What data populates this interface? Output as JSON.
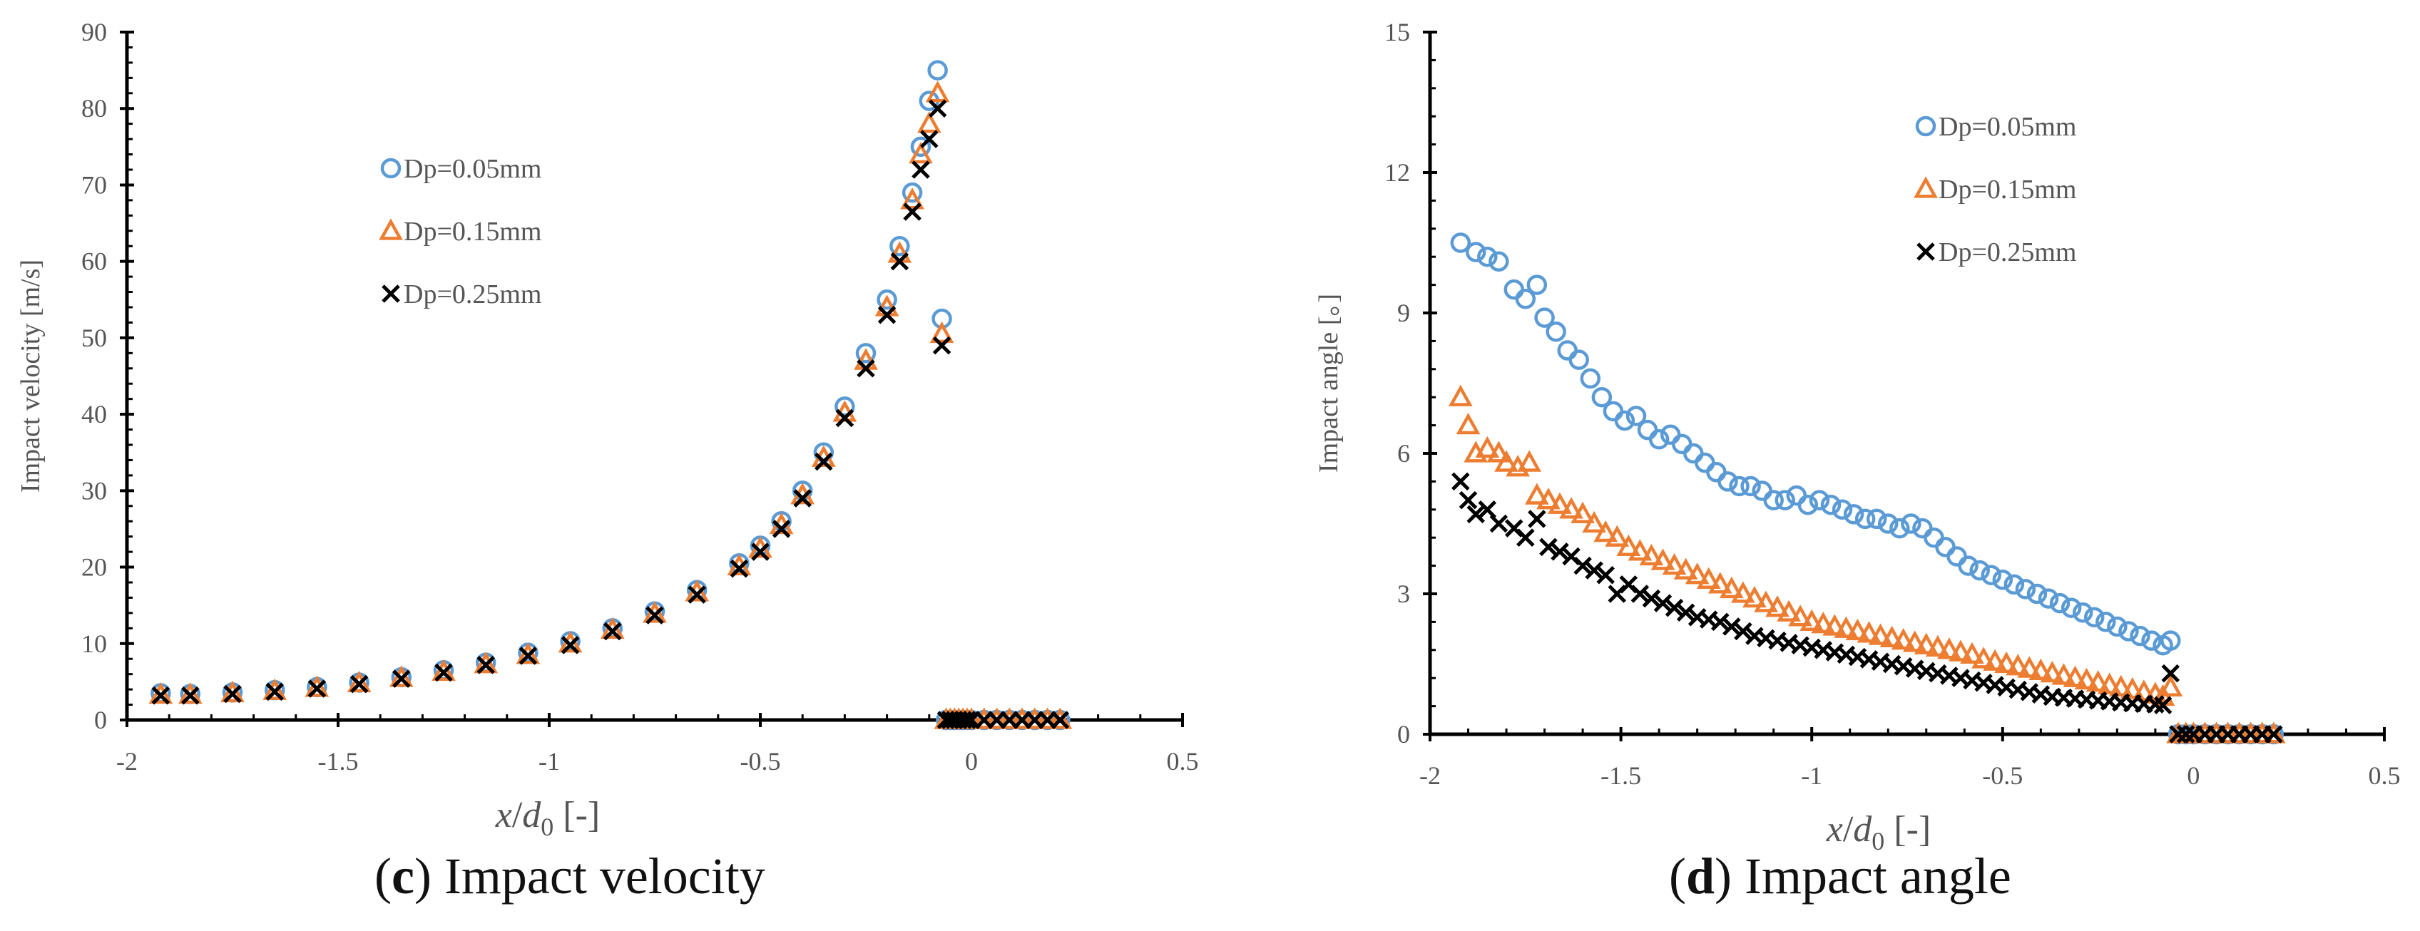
{
  "colors": {
    "series_005": "#5b9bd5",
    "series_015": "#ed7d31",
    "series_025": "#000000",
    "axis": "#000000",
    "text": "#555555"
  },
  "chart_data": [
    {
      "id": "c",
      "type": "scatter",
      "title": "Impact velocity",
      "caption_letter": "c",
      "caption_text": "Impact velocity",
      "ylabel": "Impact velocity [m/s]",
      "xlabel_var": "x",
      "xlabel_d": "d",
      "xlabel_sub": "0",
      "xlabel_unit": "[-]",
      "xlim": [
        -2,
        0.5
      ],
      "ylim": [
        0,
        90
      ],
      "xticks": [
        -2,
        -1.5,
        -1,
        -0.5,
        0,
        0.5
      ],
      "xtick_labels": [
        "-2",
        "-1.5",
        "-1",
        "-0.5",
        "0",
        "0.5"
      ],
      "yticks": [
        0,
        10,
        20,
        30,
        40,
        50,
        60,
        70,
        80,
        90
      ],
      "ytick_labels": [
        "0",
        "10",
        "20",
        "30",
        "40",
        "50",
        "60",
        "70",
        "80",
        "90"
      ],
      "legend_position": "upper-left-center",
      "series": [
        {
          "name": "Dp=0.05mm",
          "marker": "circle",
          "x": [
            -1.92,
            -1.85,
            -1.75,
            -1.65,
            -1.55,
            -1.45,
            -1.35,
            -1.25,
            -1.15,
            -1.05,
            -0.95,
            -0.85,
            -0.75,
            -0.65,
            -0.55,
            -0.5,
            -0.45,
            -0.4,
            -0.35,
            -0.3,
            -0.25,
            -0.2,
            -0.17,
            -0.14,
            -0.12,
            -0.1,
            -0.08,
            -0.07,
            -0.06,
            -0.06,
            -0.05,
            -0.04,
            -0.03,
            -0.02,
            -0.01,
            0.0,
            0.03,
            0.06,
            0.09,
            0.12,
            0.15,
            0.18,
            0.21
          ],
          "y": [
            3.5,
            3.4,
            3.6,
            3.9,
            4.3,
            4.9,
            5.6,
            6.5,
            7.5,
            8.8,
            10.3,
            12.0,
            14.2,
            17.0,
            20.5,
            22.8,
            26.0,
            30.0,
            35.0,
            41.0,
            48.0,
            55.0,
            62.0,
            69.0,
            75.0,
            81.0,
            85.0,
            52.5,
            0,
            0,
            0,
            0,
            0,
            0,
            0,
            0,
            0,
            0,
            0,
            0,
            0,
            0,
            0
          ]
        },
        {
          "name": "Dp=0.15mm",
          "marker": "triangle",
          "x": [
            -1.92,
            -1.85,
            -1.75,
            -1.65,
            -1.55,
            -1.45,
            -1.35,
            -1.25,
            -1.15,
            -1.05,
            -0.95,
            -0.85,
            -0.75,
            -0.65,
            -0.55,
            -0.5,
            -0.45,
            -0.4,
            -0.35,
            -0.3,
            -0.25,
            -0.2,
            -0.17,
            -0.14,
            -0.12,
            -0.1,
            -0.08,
            -0.07,
            -0.06,
            -0.05,
            -0.04,
            -0.03,
            -0.02,
            -0.01,
            0.0,
            0.03,
            0.06,
            0.09,
            0.12,
            0.15,
            0.18,
            0.21
          ],
          "y": [
            3.3,
            3.3,
            3.5,
            3.8,
            4.2,
            4.8,
            5.5,
            6.3,
            7.3,
            8.5,
            10.0,
            11.8,
            13.9,
            16.7,
            20.1,
            22.4,
            25.5,
            29.4,
            34.3,
            40.2,
            47.0,
            54.0,
            61.0,
            68.0,
            74.0,
            78.0,
            82.0,
            50.5,
            0,
            0,
            0,
            0,
            0,
            0,
            0,
            0,
            0,
            0,
            0,
            0,
            0,
            0
          ]
        },
        {
          "name": "Dp=0.25mm",
          "marker": "cross",
          "x": [
            -1.92,
            -1.85,
            -1.75,
            -1.65,
            -1.55,
            -1.45,
            -1.35,
            -1.25,
            -1.15,
            -1.05,
            -0.95,
            -0.85,
            -0.75,
            -0.65,
            -0.55,
            -0.5,
            -0.45,
            -0.4,
            -0.35,
            -0.3,
            -0.25,
            -0.2,
            -0.17,
            -0.14,
            -0.12,
            -0.1,
            -0.08,
            -0.07,
            -0.06,
            -0.05,
            -0.04,
            -0.03,
            -0.02,
            -0.01,
            0.0,
            0.03,
            0.06,
            0.09,
            0.12,
            0.15,
            0.18,
            0.21
          ],
          "y": [
            3.2,
            3.2,
            3.4,
            3.7,
            4.1,
            4.7,
            5.4,
            6.2,
            7.2,
            8.4,
            9.8,
            11.6,
            13.7,
            16.4,
            19.8,
            22.0,
            25.0,
            29.0,
            33.8,
            39.5,
            46.0,
            53.0,
            60.0,
            66.5,
            72.0,
            76.0,
            80.0,
            49.0,
            0,
            0,
            0,
            0,
            0,
            0,
            0,
            0,
            0,
            0,
            0,
            0,
            0,
            0
          ]
        }
      ]
    },
    {
      "id": "d",
      "type": "scatter",
      "title": "Impact angle",
      "caption_letter": "d",
      "caption_text": "Impact angle",
      "ylabel": "Impact angle [。]",
      "xlabel_var": "x",
      "xlabel_d": "d",
      "xlabel_sub": "0",
      "xlabel_unit": "[-]",
      "xlim": [
        -2,
        0.5
      ],
      "ylim": [
        0,
        15
      ],
      "xticks": [
        -2,
        -1.5,
        -1,
        -0.5,
        0,
        0.5
      ],
      "xtick_labels": [
        "-2",
        "-1.5",
        "-1",
        "-0.5",
        "0",
        "0.5"
      ],
      "yticks": [
        0,
        3,
        6,
        9,
        12,
        15
      ],
      "ytick_labels": [
        "0",
        "3",
        "6",
        "9",
        "12",
        "15"
      ],
      "legend_position": "top-center-right",
      "series": [
        {
          "name": "Dp=0.05mm",
          "marker": "circle",
          "x": [
            -1.92,
            -1.88,
            -1.85,
            -1.82,
            -1.78,
            -1.75,
            -1.72,
            -1.7,
            -1.67,
            -1.64,
            -1.61,
            -1.58,
            -1.55,
            -1.52,
            -1.49,
            -1.46,
            -1.43,
            -1.4,
            -1.37,
            -1.34,
            -1.31,
            -1.28,
            -1.25,
            -1.22,
            -1.19,
            -1.16,
            -1.13,
            -1.1,
            -1.07,
            -1.04,
            -1.01,
            -0.98,
            -0.95,
            -0.92,
            -0.89,
            -0.86,
            -0.83,
            -0.8,
            -0.77,
            -0.74,
            -0.71,
            -0.68,
            -0.65,
            -0.62,
            -0.59,
            -0.56,
            -0.53,
            -0.5,
            -0.47,
            -0.44,
            -0.41,
            -0.38,
            -0.35,
            -0.32,
            -0.29,
            -0.26,
            -0.23,
            -0.2,
            -0.17,
            -0.14,
            -0.11,
            -0.08,
            -0.06,
            -0.04,
            -0.02,
            0.0,
            0.03,
            0.06,
            0.09,
            0.12,
            0.15,
            0.18,
            0.21
          ],
          "y": [
            10.5,
            10.3,
            10.2,
            10.1,
            9.5,
            9.3,
            9.6,
            8.9,
            8.6,
            8.2,
            8.0,
            7.6,
            7.2,
            6.9,
            6.7,
            6.8,
            6.5,
            6.3,
            6.4,
            6.2,
            6.0,
            5.8,
            5.6,
            5.4,
            5.3,
            5.3,
            5.2,
            5.0,
            5.0,
            5.1,
            4.9,
            5.0,
            4.9,
            4.8,
            4.7,
            4.6,
            4.6,
            4.5,
            4.4,
            4.5,
            4.4,
            4.2,
            4.0,
            3.8,
            3.6,
            3.5,
            3.4,
            3.3,
            3.2,
            3.1,
            3.0,
            2.9,
            2.8,
            2.7,
            2.6,
            2.5,
            2.4,
            2.3,
            2.2,
            2.1,
            2.0,
            1.9,
            2.0,
            0,
            0,
            0,
            0,
            0,
            0,
            0,
            0,
            0,
            0
          ]
        },
        {
          "name": "Dp=0.15mm",
          "marker": "triangle",
          "x": [
            -1.92,
            -1.9,
            -1.88,
            -1.85,
            -1.82,
            -1.8,
            -1.77,
            -1.74,
            -1.72,
            -1.69,
            -1.66,
            -1.63,
            -1.6,
            -1.57,
            -1.54,
            -1.51,
            -1.48,
            -1.45,
            -1.42,
            -1.39,
            -1.36,
            -1.33,
            -1.3,
            -1.27,
            -1.24,
            -1.21,
            -1.18,
            -1.15,
            -1.12,
            -1.09,
            -1.06,
            -1.03,
            -1.0,
            -0.97,
            -0.94,
            -0.91,
            -0.88,
            -0.85,
            -0.82,
            -0.79,
            -0.76,
            -0.73,
            -0.7,
            -0.67,
            -0.64,
            -0.61,
            -0.58,
            -0.55,
            -0.52,
            -0.49,
            -0.46,
            -0.43,
            -0.4,
            -0.37,
            -0.34,
            -0.31,
            -0.28,
            -0.25,
            -0.22,
            -0.19,
            -0.16,
            -0.13,
            -0.1,
            -0.08,
            -0.06,
            -0.04,
            -0.02,
            0.0,
            0.03,
            0.06,
            0.09,
            0.12,
            0.15,
            0.18,
            0.21
          ],
          "y": [
            7.2,
            6.6,
            6.0,
            6.1,
            6.0,
            5.8,
            5.7,
            5.8,
            5.1,
            5.0,
            4.9,
            4.8,
            4.7,
            4.5,
            4.3,
            4.2,
            4.0,
            3.9,
            3.8,
            3.7,
            3.6,
            3.5,
            3.4,
            3.3,
            3.2,
            3.1,
            3.0,
            2.9,
            2.8,
            2.7,
            2.6,
            2.5,
            2.4,
            2.35,
            2.3,
            2.25,
            2.2,
            2.15,
            2.1,
            2.05,
            2.0,
            1.95,
            1.9,
            1.85,
            1.8,
            1.75,
            1.7,
            1.6,
            1.55,
            1.5,
            1.45,
            1.4,
            1.35,
            1.3,
            1.25,
            1.2,
            1.15,
            1.1,
            1.05,
            1.0,
            0.95,
            0.9,
            0.85,
            0.8,
            1.0,
            0,
            0,
            0,
            0,
            0,
            0,
            0,
            0,
            0,
            0
          ]
        },
        {
          "name": "Dp=0.25mm",
          "marker": "cross",
          "x": [
            -1.92,
            -1.9,
            -1.88,
            -1.85,
            -1.82,
            -1.78,
            -1.75,
            -1.72,
            -1.69,
            -1.66,
            -1.63,
            -1.6,
            -1.57,
            -1.54,
            -1.51,
            -1.48,
            -1.45,
            -1.42,
            -1.39,
            -1.36,
            -1.33,
            -1.3,
            -1.27,
            -1.24,
            -1.21,
            -1.18,
            -1.15,
            -1.12,
            -1.09,
            -1.06,
            -1.03,
            -1.0,
            -0.97,
            -0.94,
            -0.91,
            -0.88,
            -0.85,
            -0.82,
            -0.79,
            -0.76,
            -0.73,
            -0.7,
            -0.67,
            -0.64,
            -0.61,
            -0.58,
            -0.55,
            -0.52,
            -0.49,
            -0.46,
            -0.43,
            -0.4,
            -0.37,
            -0.34,
            -0.31,
            -0.28,
            -0.25,
            -0.22,
            -0.19,
            -0.16,
            -0.13,
            -0.1,
            -0.08,
            -0.06,
            -0.04,
            -0.02,
            0.0,
            0.03,
            0.06,
            0.09,
            0.12,
            0.15,
            0.18,
            0.21
          ],
          "y": [
            5.4,
            5.0,
            4.7,
            4.8,
            4.5,
            4.4,
            4.2,
            4.6,
            4.0,
            3.9,
            3.8,
            3.6,
            3.5,
            3.4,
            3.0,
            3.2,
            3.0,
            2.9,
            2.8,
            2.7,
            2.6,
            2.5,
            2.45,
            2.4,
            2.3,
            2.2,
            2.1,
            2.05,
            2.0,
            1.95,
            1.9,
            1.85,
            1.8,
            1.75,
            1.7,
            1.65,
            1.6,
            1.55,
            1.5,
            1.45,
            1.4,
            1.35,
            1.3,
            1.25,
            1.2,
            1.15,
            1.1,
            1.05,
            1.0,
            0.95,
            0.9,
            0.85,
            0.8,
            0.78,
            0.76,
            0.74,
            0.72,
            0.7,
            0.68,
            0.66,
            0.65,
            0.64,
            0.62,
            1.3,
            0,
            0,
            0,
            0,
            0,
            0,
            0,
            0,
            0,
            0
          ]
        }
      ]
    }
  ]
}
